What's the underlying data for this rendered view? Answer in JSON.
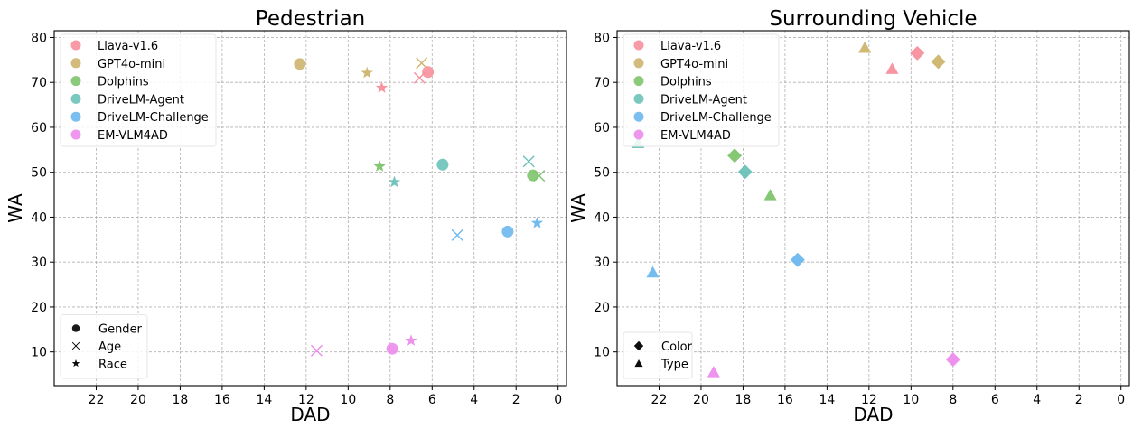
{
  "chart_data": [
    {
      "type": "scatter",
      "title": "Pedestrian",
      "xlabel": "DAD",
      "ylabel": "WA",
      "xlim": [
        24,
        -0.4
      ],
      "ylim": [
        2.5,
        81.5
      ],
      "x_inverted": true,
      "xticks": [
        22,
        20,
        18,
        16,
        14,
        12,
        10,
        8,
        6,
        4,
        2,
        0
      ],
      "yticks": [
        10,
        20,
        30,
        40,
        50,
        60,
        70,
        80
      ],
      "grid": true,
      "legend_models": {
        "placement": "top-left",
        "entries": [
          "Llava-v1.6",
          "GPT4o-mini",
          "Dolphins",
          "DriveLM-Agent",
          "DriveLM-Challenge",
          "EM-VLM4AD"
        ]
      },
      "legend_markers": {
        "placement": "bottom-left",
        "entries": [
          {
            "label": "Gender",
            "marker": "circle"
          },
          {
            "label": "Age",
            "marker": "x"
          },
          {
            "label": "Race",
            "marker": "star"
          }
        ]
      },
      "colors": {
        "Llava-v1.6": "#f7909c",
        "GPT4o-mini": "#cdb46e",
        "Dolphins": "#7ec46b",
        "DriveLM-Agent": "#6cc2b8",
        "DriveLM-Challenge": "#6db8ee",
        "EM-VLM4AD": "#ec8cec"
      },
      "points": [
        {
          "model": "Llava-v1.6",
          "marker": "circle",
          "x": 6.2,
          "y": 72.3
        },
        {
          "model": "Llava-v1.6",
          "marker": "x",
          "x": 6.6,
          "y": 71.0
        },
        {
          "model": "Llava-v1.6",
          "marker": "star",
          "x": 8.4,
          "y": 68.8
        },
        {
          "model": "GPT4o-mini",
          "marker": "circle",
          "x": 12.3,
          "y": 74.1
        },
        {
          "model": "GPT4o-mini",
          "marker": "x",
          "x": 6.5,
          "y": 74.3
        },
        {
          "model": "GPT4o-mini",
          "marker": "star",
          "x": 9.1,
          "y": 72.1
        },
        {
          "model": "Dolphins",
          "marker": "circle",
          "x": 1.2,
          "y": 49.3
        },
        {
          "model": "Dolphins",
          "marker": "x",
          "x": 0.9,
          "y": 49.2
        },
        {
          "model": "Dolphins",
          "marker": "star",
          "x": 8.5,
          "y": 51.3
        },
        {
          "model": "DriveLM-Agent",
          "marker": "circle",
          "x": 5.5,
          "y": 51.7
        },
        {
          "model": "DriveLM-Agent",
          "marker": "x",
          "x": 1.4,
          "y": 52.4
        },
        {
          "model": "DriveLM-Agent",
          "marker": "star",
          "x": 7.8,
          "y": 47.8
        },
        {
          "model": "DriveLM-Challenge",
          "marker": "circle",
          "x": 2.4,
          "y": 36.8
        },
        {
          "model": "DriveLM-Challenge",
          "marker": "x",
          "x": 4.8,
          "y": 36.0
        },
        {
          "model": "DriveLM-Challenge",
          "marker": "star",
          "x": 1.0,
          "y": 38.7
        },
        {
          "model": "EM-VLM4AD",
          "marker": "circle",
          "x": 7.9,
          "y": 10.7
        },
        {
          "model": "EM-VLM4AD",
          "marker": "x",
          "x": 11.5,
          "y": 10.3
        },
        {
          "model": "EM-VLM4AD",
          "marker": "star",
          "x": 7.0,
          "y": 12.5
        }
      ]
    },
    {
      "type": "scatter",
      "title": "Surrounding Vehicle",
      "xlabel": "DAD",
      "ylabel": "WA",
      "xlim": [
        24,
        -0.4
      ],
      "ylim": [
        2.5,
        81.5
      ],
      "x_inverted": true,
      "xticks": [
        22,
        20,
        18,
        16,
        14,
        12,
        10,
        8,
        6,
        4,
        2,
        0
      ],
      "yticks": [
        10,
        20,
        30,
        40,
        50,
        60,
        70,
        80
      ],
      "grid": true,
      "legend_models": {
        "placement": "top-left",
        "entries": [
          "Llava-v1.6",
          "GPT4o-mini",
          "Dolphins",
          "DriveLM-Agent",
          "DriveLM-Challenge",
          "EM-VLM4AD"
        ]
      },
      "legend_markers": {
        "placement": "bottom-left",
        "entries": [
          {
            "label": "Color",
            "marker": "diamond"
          },
          {
            "label": "Type",
            "marker": "triangle"
          }
        ]
      },
      "colors": {
        "Llava-v1.6": "#f7909c",
        "GPT4o-mini": "#cdb46e",
        "Dolphins": "#7ec46b",
        "DriveLM-Agent": "#6cc2b8",
        "DriveLM-Challenge": "#6db8ee",
        "EM-VLM4AD": "#ec8cec"
      },
      "points": [
        {
          "model": "Llava-v1.6",
          "marker": "diamond",
          "x": 9.7,
          "y": 76.5
        },
        {
          "model": "Llava-v1.6",
          "marker": "triangle",
          "x": 10.9,
          "y": 73.0
        },
        {
          "model": "GPT4o-mini",
          "marker": "diamond",
          "x": 8.7,
          "y": 74.6
        },
        {
          "model": "GPT4o-mini",
          "marker": "triangle",
          "x": 12.2,
          "y": 77.7
        },
        {
          "model": "Dolphins",
          "marker": "diamond",
          "x": 18.4,
          "y": 53.7
        },
        {
          "model": "Dolphins",
          "marker": "triangle",
          "x": 16.7,
          "y": 44.9
        },
        {
          "model": "DriveLM-Agent",
          "marker": "diamond",
          "x": 17.9,
          "y": 50.1
        },
        {
          "model": "DriveLM-Agent",
          "marker": "triangle",
          "x": 23.0,
          "y": 56.5
        },
        {
          "model": "DriveLM-Challenge",
          "marker": "diamond",
          "x": 15.4,
          "y": 30.5
        },
        {
          "model": "DriveLM-Challenge",
          "marker": "triangle",
          "x": 22.3,
          "y": 27.7
        },
        {
          "model": "EM-VLM4AD",
          "marker": "diamond",
          "x": 8.0,
          "y": 8.3
        },
        {
          "model": "EM-VLM4AD",
          "marker": "triangle",
          "x": 19.4,
          "y": 5.5
        }
      ]
    }
  ]
}
